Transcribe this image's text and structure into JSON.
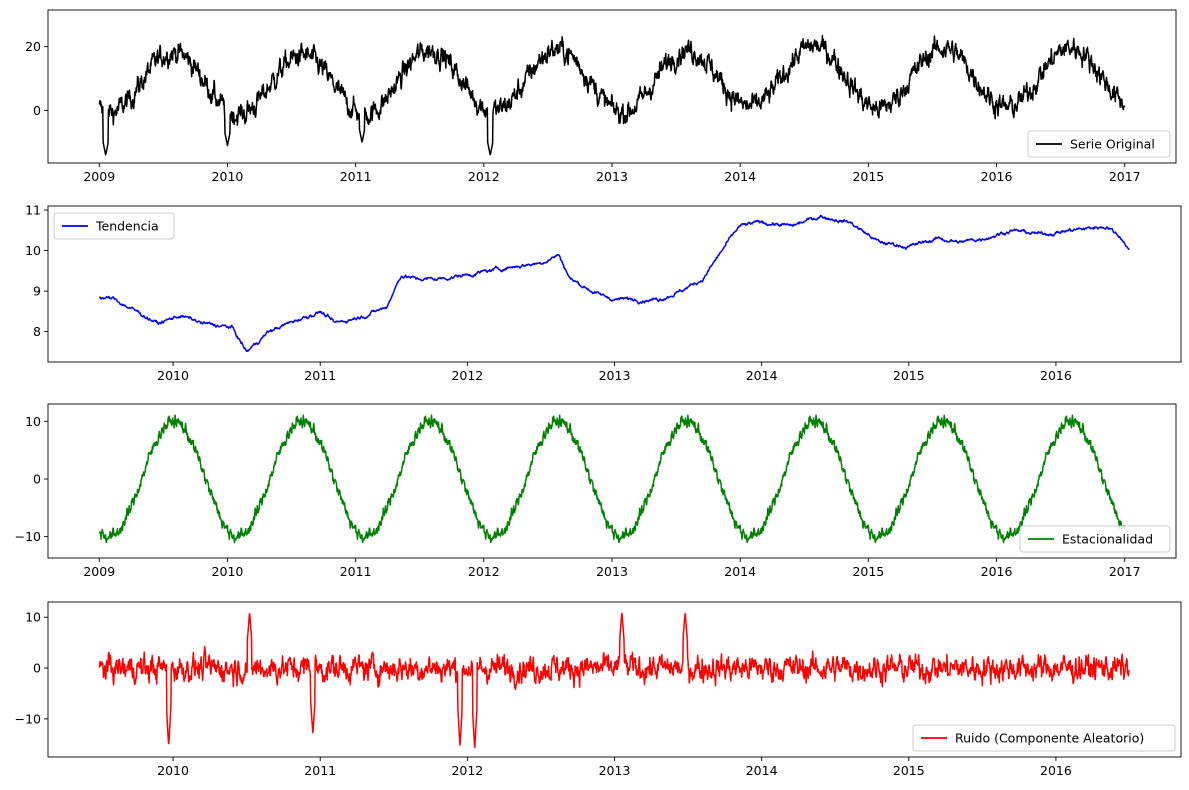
{
  "chart_data": [
    {
      "type": "line",
      "panel": "original",
      "series": [
        {
          "name": "Serie Original",
          "color": "#000000",
          "x_start": 2009.0,
          "x_end": 2017.0
        }
      ],
      "xlim": [
        2008.6,
        2017.4
      ],
      "ylim": [
        -16.5,
        31.5
      ],
      "x_ticks": [
        2009,
        2010,
        2011,
        2012,
        2013,
        2014,
        2015,
        2016,
        2017
      ],
      "x_tick_labels": [
        "2009",
        "2010",
        "2011",
        "2012",
        "2013",
        "2014",
        "2015",
        "2016",
        "2017"
      ],
      "y_ticks": [
        0,
        20
      ],
      "y_tick_labels": [
        "0",
        "20"
      ],
      "legend_position": "lower-right",
      "trend_anchors": [
        [
          2009.0,
          8.9
        ],
        [
          2009.5,
          8.9
        ],
        [
          2010.0,
          8.3
        ],
        [
          2010.5,
          7.6
        ],
        [
          2011.0,
          8.2
        ],
        [
          2011.5,
          9.4
        ],
        [
          2012.0,
          9.3
        ],
        [
          2012.5,
          9.8
        ],
        [
          2013.0,
          8.9
        ],
        [
          2013.5,
          9.2
        ],
        [
          2014.0,
          10.7
        ],
        [
          2014.5,
          10.8
        ],
        [
          2015.0,
          10.1
        ],
        [
          2015.5,
          10.1
        ],
        [
          2016.0,
          10.5
        ],
        [
          2016.5,
          10.3
        ],
        [
          2017.0,
          10.0
        ]
      ],
      "seasonal_amplitude": 9.5,
      "noise_amplitude": 4.5,
      "dips": [
        [
          2009.05,
          -14
        ],
        [
          2010.0,
          -11
        ],
        [
          2011.05,
          -10
        ],
        [
          2012.05,
          -14
        ]
      ]
    },
    {
      "type": "line",
      "panel": "trend",
      "series": [
        {
          "name": "Tendencia",
          "color": "#0000ff",
          "x_start": 2009.5,
          "x_end": 2016.5
        }
      ],
      "xlim": [
        2009.15,
        2016.85
      ],
      "ylim": [
        7.25,
        11.1
      ],
      "x_ticks": [
        2010,
        2011,
        2012,
        2013,
        2014,
        2015,
        2016
      ],
      "x_tick_labels": [
        "2010",
        "2011",
        "2012",
        "2013",
        "2014",
        "2015",
        "2016"
      ],
      "y_ticks": [
        8,
        9,
        10,
        11
      ],
      "y_tick_labels": [
        "8",
        "9",
        "10",
        "11"
      ],
      "legend_position": "upper-left",
      "anchors": [
        [
          2009.5,
          8.85
        ],
        [
          2009.6,
          8.8
        ],
        [
          2009.75,
          8.5
        ],
        [
          2009.9,
          8.2
        ],
        [
          2010.05,
          8.4
        ],
        [
          2010.2,
          8.2
        ],
        [
          2010.4,
          8.1
        ],
        [
          2010.5,
          7.5
        ],
        [
          2010.65,
          8.0
        ],
        [
          2010.85,
          8.3
        ],
        [
          2011.0,
          8.5
        ],
        [
          2011.1,
          8.2
        ],
        [
          2011.3,
          8.4
        ],
        [
          2011.45,
          8.6
        ],
        [
          2011.55,
          9.4
        ],
        [
          2011.65,
          9.3
        ],
        [
          2011.8,
          9.3
        ],
        [
          2012.0,
          9.4
        ],
        [
          2012.3,
          9.6
        ],
        [
          2012.5,
          9.7
        ],
        [
          2012.62,
          9.9
        ],
        [
          2012.7,
          9.3
        ],
        [
          2012.9,
          8.9
        ],
        [
          2013.0,
          8.8
        ],
        [
          2013.3,
          8.8
        ],
        [
          2013.45,
          9.0
        ],
        [
          2013.6,
          9.3
        ],
        [
          2013.75,
          10.1
        ],
        [
          2013.85,
          10.6
        ],
        [
          2014.0,
          10.7
        ],
        [
          2014.2,
          10.6
        ],
        [
          2014.4,
          10.85
        ],
        [
          2014.6,
          10.7
        ],
        [
          2014.8,
          10.2
        ],
        [
          2015.0,
          10.1
        ],
        [
          2015.2,
          10.3
        ],
        [
          2015.35,
          10.2
        ],
        [
          2015.5,
          10.3
        ],
        [
          2015.7,
          10.5
        ],
        [
          2015.9,
          10.4
        ],
        [
          2016.1,
          10.5
        ],
        [
          2016.35,
          10.6
        ],
        [
          2016.45,
          10.3
        ],
        [
          2016.5,
          10.0
        ]
      ],
      "wiggle": 0.05
    },
    {
      "type": "line",
      "panel": "seasonal",
      "series": [
        {
          "name": "Estacionalidad",
          "color": "#008000",
          "x_start": 2009.0,
          "x_end": 2017.0
        }
      ],
      "xlim": [
        2008.6,
        2017.4
      ],
      "ylim": [
        -13.7,
        13.0
      ],
      "x_ticks": [
        2009,
        2010,
        2011,
        2012,
        2013,
        2014,
        2015,
        2016,
        2017
      ],
      "x_tick_labels": [
        "2009",
        "2010",
        "2011",
        "2012",
        "2013",
        "2014",
        "2015",
        "2016",
        "2017"
      ],
      "y_ticks": [
        -10,
        0,
        10
      ],
      "y_tick_labels": [
        "−10",
        "0",
        "10"
      ],
      "legend_position": "lower-right",
      "amplitude": 10.0,
      "jitter": 1.4
    },
    {
      "type": "line",
      "panel": "residual",
      "series": [
        {
          "name": "Ruido (Componente Aleatorio)",
          "color": "#ff0000",
          "x_start": 2009.5,
          "x_end": 2016.5
        }
      ],
      "xlim": [
        2009.15,
        2016.85
      ],
      "ylim": [
        -17.5,
        13.0
      ],
      "x_ticks": [
        2010,
        2011,
        2012,
        2013,
        2014,
        2015,
        2016
      ],
      "x_tick_labels": [
        "2010",
        "2011",
        "2012",
        "2013",
        "2014",
        "2015",
        "2016"
      ],
      "y_ticks": [
        -10,
        0,
        10
      ],
      "y_tick_labels": [
        "−10",
        "0",
        "10"
      ],
      "legend_position": "lower-right",
      "noise_amplitude": 3.2,
      "spikes": [
        [
          2009.97,
          -15.5
        ],
        [
          2010.52,
          11
        ],
        [
          2010.95,
          -13
        ],
        [
          2011.95,
          -15.5
        ],
        [
          2012.05,
          -16
        ],
        [
          2013.05,
          11
        ],
        [
          2013.48,
          11
        ]
      ]
    }
  ]
}
